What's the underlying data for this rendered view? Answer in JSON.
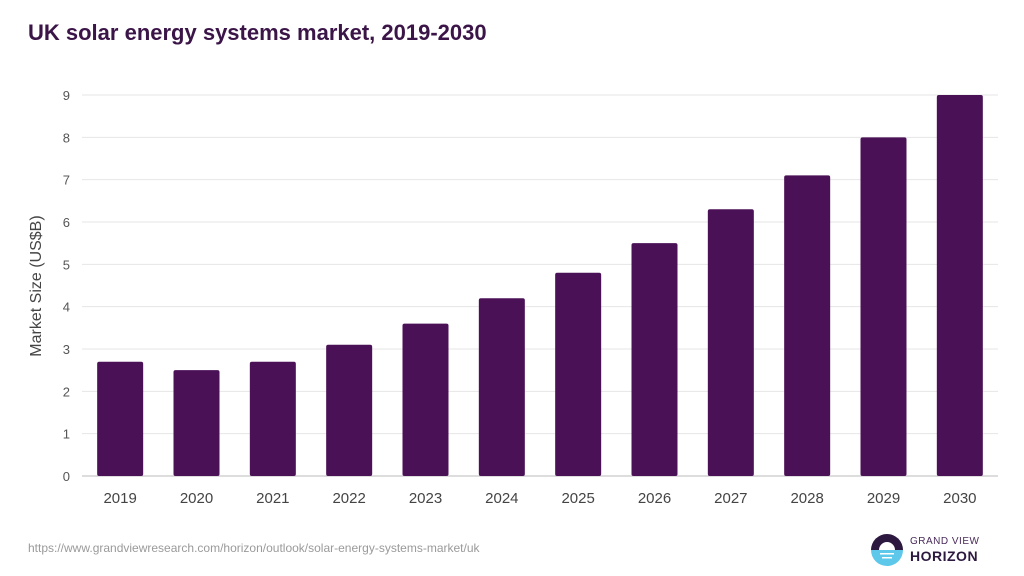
{
  "chart_data": {
    "type": "bar",
    "title": "UK solar energy systems market, 2019-2030",
    "xlabel": "",
    "ylabel": "Market Size (US$B)",
    "ylim": [
      0,
      9
    ],
    "yticks": [
      0,
      1,
      2,
      3,
      4,
      5,
      6,
      7,
      8,
      9
    ],
    "grid": true,
    "categories": [
      "2019",
      "2020",
      "2021",
      "2022",
      "2023",
      "2024",
      "2025",
      "2026",
      "2027",
      "2028",
      "2029",
      "2030"
    ],
    "values": [
      2.7,
      2.5,
      2.7,
      3.1,
      3.6,
      4.2,
      4.8,
      5.5,
      6.3,
      7.1,
      8.0,
      9.0
    ],
    "bar_color": "#4b1157"
  },
  "source_url": "https://www.grandviewresearch.com/horizon/outlook/solar-energy-systems-market/uk",
  "logo": {
    "line1": "GRAND VIEW",
    "line2": "HORIZON"
  }
}
